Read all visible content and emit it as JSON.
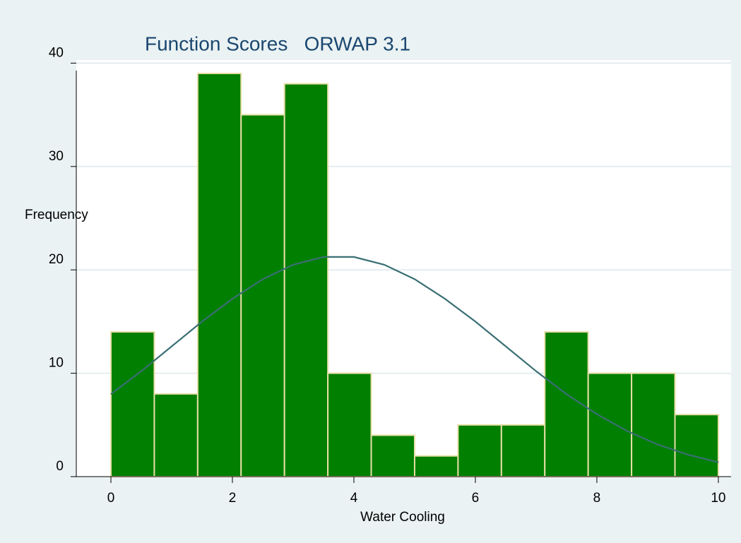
{
  "chart_data": {
    "type": "histogram",
    "title": "Function Scores   ORWAP 3.1",
    "x_label": "Water Cooling",
    "y_label": "Frequency",
    "bins": [
      0,
      0.7143,
      1.4286,
      2.1429,
      2.8571,
      3.5714,
      4.2857,
      5,
      5.7143,
      6.4286,
      7.1429,
      7.8571,
      8.5714,
      9.2857,
      10
    ],
    "values": [
      14,
      8,
      39,
      35,
      38,
      10,
      4,
      2,
      5,
      5,
      14,
      10,
      10,
      6
    ],
    "color": "#007f00",
    "edge_color": "#e6dfa6",
    "curve": {
      "color": "#3a6f74",
      "x": [
        0,
        0.5,
        1,
        1.5,
        2,
        2.5,
        3,
        3.5,
        4,
        4.5,
        5,
        5.5,
        6,
        6.5,
        7,
        7.5,
        8,
        8.5,
        9,
        9.5,
        10
      ],
      "values": [
        7.98,
        10.2,
        12.6,
        15.0,
        17.2,
        19.1,
        20.5,
        21.25,
        21.25,
        20.5,
        19.1,
        17.2,
        15.0,
        12.6,
        10.2,
        7.98,
        6.04,
        4.41,
        3.11,
        2.12,
        1.39
      ]
    },
    "xlim": [
      -0.57,
      10.21
    ],
    "ylim": [
      0,
      40.3
    ],
    "xticks": [
      0,
      2,
      4,
      6,
      8,
      10
    ],
    "yticks": [
      0,
      10,
      20,
      30,
      40
    ],
    "grid": true
  }
}
